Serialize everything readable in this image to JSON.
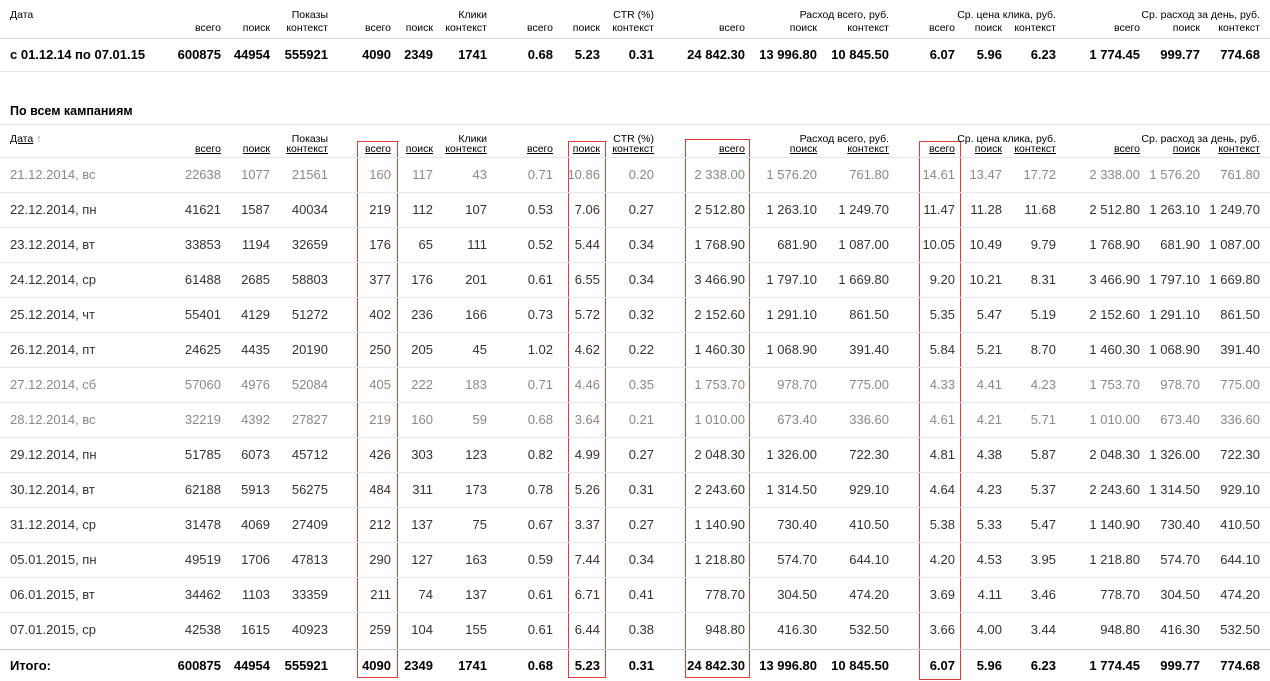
{
  "top": {
    "date_label": "Дата",
    "groups": [
      "Показы",
      "Клики",
      "CTR (%)",
      "Расход всего, руб.",
      "Ср. цена клика, руб.",
      "Ср. расход за день, руб."
    ],
    "subs": {
      "imp": [
        "всего",
        "поиск",
        "контекст"
      ],
      "clk": [
        "всего",
        "поиск",
        "контекст"
      ],
      "ctr": [
        "всего",
        "поиск",
        "контекст"
      ],
      "cost": [
        "всего",
        "поиск",
        "контекст"
      ],
      "cpc": [
        "всего",
        "поиск",
        "контекст"
      ],
      "day": [
        "всего",
        "поиск",
        "контекст"
      ]
    },
    "row": [
      "с 01.12.14 по 07.01.15",
      "600875",
      "44954",
      "555921",
      "4090",
      "2349",
      "1741",
      "0.68",
      "5.23",
      "0.31",
      "24 842.30",
      "13 996.80",
      "10 845.50",
      "6.07",
      "5.96",
      "6.23",
      "1 774.45",
      "999.77",
      "774.68"
    ]
  },
  "section_title": "По всем кампаниям",
  "table": {
    "date_label": "Дата",
    "sort_arrow": "↑",
    "rows": [
      [
        "21.12.2014, вс",
        "22638",
        "1077",
        "21561",
        "160",
        "117",
        "43",
        "0.71",
        "10.86",
        "0.20",
        "2 338.00",
        "1 576.20",
        "761.80",
        "14.61",
        "13.47",
        "17.72",
        "2 338.00",
        "1 576.20",
        "761.80"
      ],
      [
        "22.12.2014, пн",
        "41621",
        "1587",
        "40034",
        "219",
        "112",
        "107",
        "0.53",
        "7.06",
        "0.27",
        "2 512.80",
        "1 263.10",
        "1 249.70",
        "11.47",
        "11.28",
        "11.68",
        "2 512.80",
        "1 263.10",
        "1 249.70"
      ],
      [
        "23.12.2014, вт",
        "33853",
        "1194",
        "32659",
        "176",
        "65",
        "111",
        "0.52",
        "5.44",
        "0.34",
        "1 768.90",
        "681.90",
        "1 087.00",
        "10.05",
        "10.49",
        "9.79",
        "1 768.90",
        "681.90",
        "1 087.00"
      ],
      [
        "24.12.2014, ср",
        "61488",
        "2685",
        "58803",
        "377",
        "176",
        "201",
        "0.61",
        "6.55",
        "0.34",
        "3 466.90",
        "1 797.10",
        "1 669.80",
        "9.20",
        "10.21",
        "8.31",
        "3 466.90",
        "1 797.10",
        "1 669.80"
      ],
      [
        "25.12.2014, чт",
        "55401",
        "4129",
        "51272",
        "402",
        "236",
        "166",
        "0.73",
        "5.72",
        "0.32",
        "2 152.60",
        "1 291.10",
        "861.50",
        "5.35",
        "5.47",
        "5.19",
        "2 152.60",
        "1 291.10",
        "861.50"
      ],
      [
        "26.12.2014, пт",
        "24625",
        "4435",
        "20190",
        "250",
        "205",
        "45",
        "1.02",
        "4.62",
        "0.22",
        "1 460.30",
        "1 068.90",
        "391.40",
        "5.84",
        "5.21",
        "8.70",
        "1 460.30",
        "1 068.90",
        "391.40"
      ],
      [
        "27.12.2014, сб",
        "57060",
        "4976",
        "52084",
        "405",
        "222",
        "183",
        "0.71",
        "4.46",
        "0.35",
        "1 753.70",
        "978.70",
        "775.00",
        "4.33",
        "4.41",
        "4.23",
        "1 753.70",
        "978.70",
        "775.00"
      ],
      [
        "28.12.2014, вс",
        "32219",
        "4392",
        "27827",
        "219",
        "160",
        "59",
        "0.68",
        "3.64",
        "0.21",
        "1 010.00",
        "673.40",
        "336.60",
        "4.61",
        "4.21",
        "5.71",
        "1 010.00",
        "673.40",
        "336.60"
      ],
      [
        "29.12.2014, пн",
        "51785",
        "6073",
        "45712",
        "426",
        "303",
        "123",
        "0.82",
        "4.99",
        "0.27",
        "2 048.30",
        "1 326.00",
        "722.30",
        "4.81",
        "4.38",
        "5.87",
        "2 048.30",
        "1 326.00",
        "722.30"
      ],
      [
        "30.12.2014, вт",
        "62188",
        "5913",
        "56275",
        "484",
        "311",
        "173",
        "0.78",
        "5.26",
        "0.31",
        "2 243.60",
        "1 314.50",
        "929.10",
        "4.64",
        "4.23",
        "5.37",
        "2 243.60",
        "1 314.50",
        "929.10"
      ],
      [
        "31.12.2014, ср",
        "31478",
        "4069",
        "27409",
        "212",
        "137",
        "75",
        "0.67",
        "3.37",
        "0.27",
        "1 140.90",
        "730.40",
        "410.50",
        "5.38",
        "5.33",
        "5.47",
        "1 140.90",
        "730.40",
        "410.50"
      ],
      [
        "05.01.2015, пн",
        "49519",
        "1706",
        "47813",
        "290",
        "127",
        "163",
        "0.59",
        "7.44",
        "0.34",
        "1 218.80",
        "574.70",
        "644.10",
        "4.20",
        "4.53",
        "3.95",
        "1 218.80",
        "574.70",
        "644.10"
      ],
      [
        "06.01.2015, вт",
        "34462",
        "1103",
        "33359",
        "211",
        "74",
        "137",
        "0.61",
        "6.71",
        "0.41",
        "778.70",
        "304.50",
        "474.20",
        "3.69",
        "4.11",
        "3.46",
        "778.70",
        "304.50",
        "474.20"
      ],
      [
        "07.01.2015, ср",
        "42538",
        "1615",
        "40923",
        "259",
        "104",
        "155",
        "0.61",
        "6.44",
        "0.38",
        "948.80",
        "416.30",
        "532.50",
        "3.66",
        "4.00",
        "3.44",
        "948.80",
        "416.30",
        "532.50"
      ]
    ],
    "weekend_rows": [
      0,
      6,
      7
    ],
    "total": [
      "Итого:",
      "600875",
      "44954",
      "555921",
      "4090",
      "2349",
      "1741",
      "0.68",
      "5.23",
      "0.31",
      "24 842.30",
      "13 996.80",
      "10 845.50",
      "6.07",
      "5.96",
      "6.23",
      "1 774.45",
      "999.77",
      "774.68"
    ]
  },
  "colors": {
    "highlight_box": "#e0383b",
    "weekend_text": "#888888",
    "text": "#000000"
  }
}
